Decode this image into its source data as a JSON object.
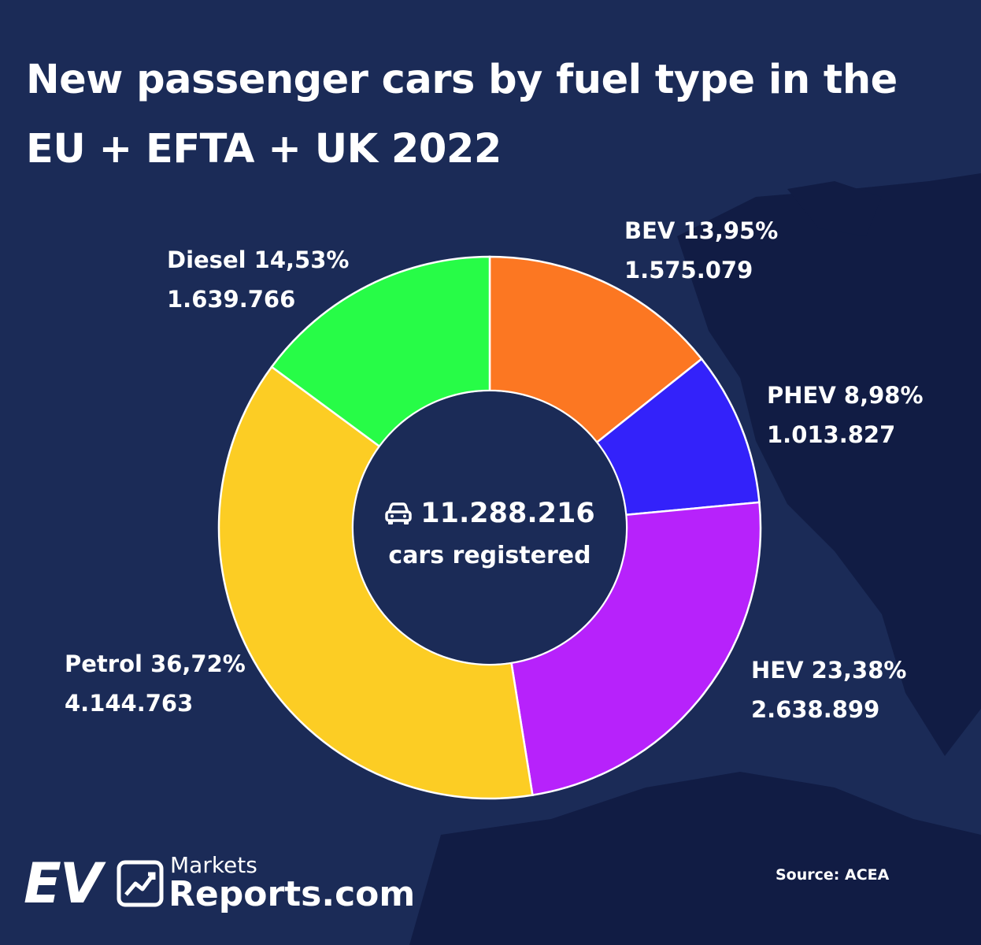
{
  "title": "New passenger cars by fuel type in the EU + EFTA + UK 2022",
  "center": {
    "total": "11.288.216",
    "subtitle": "cars registered",
    "icon": "car-icon"
  },
  "source": "Source: ACEA",
  "logo": {
    "ev": "EV",
    "markets": "Markets",
    "reports": "Reports.com",
    "icon": "chart-trend-icon"
  },
  "colors": {
    "background": "#1b2b57",
    "land": "#111c44",
    "separator": "#ffffff"
  },
  "chart_data": {
    "type": "pie",
    "style": "donut",
    "total": 11288216,
    "slices": [
      {
        "label": "BEV",
        "percent": 13.95,
        "percent_text": "13,95%",
        "value": 1575079,
        "value_text": "1.575.079",
        "color": "#fc7722"
      },
      {
        "label": "PHEV",
        "percent": 8.98,
        "percent_text": "8,98%",
        "value": 1013827,
        "value_text": "1.013.827",
        "color": "#3322fa"
      },
      {
        "label": "HEV",
        "percent": 23.38,
        "percent_text": "23,38%",
        "value": 2638899,
        "value_text": "2.638.899",
        "color": "#b722fb"
      },
      {
        "label": "Petrol",
        "percent": 36.72,
        "percent_text": "36,72%",
        "value": 4144763,
        "value_text": "4.144.763",
        "color": "#fccd24"
      },
      {
        "label": "Diesel",
        "percent": 14.53,
        "percent_text": "14,53%",
        "value": 1639766,
        "value_text": "1.639.766",
        "color": "#27fc47"
      }
    ]
  }
}
